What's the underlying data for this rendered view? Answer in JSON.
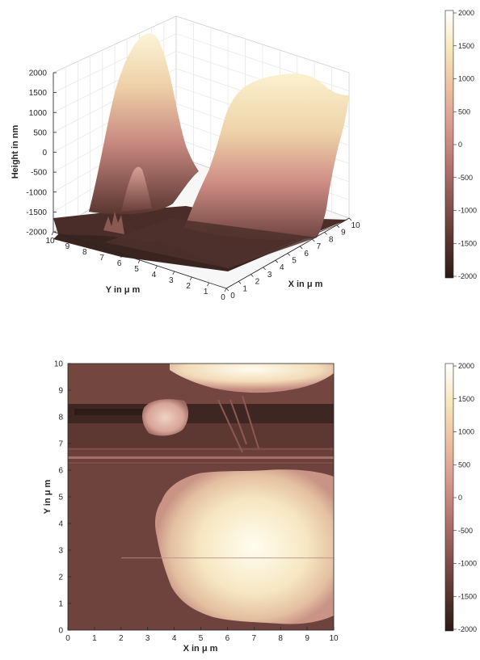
{
  "colormap": {
    "stops": [
      "#2b1a17",
      "#5a3630",
      "#8a5550",
      "#b87570",
      "#d99a90",
      "#eec0a0",
      "#f7e8bb",
      "#ffffff"
    ]
  },
  "chart_data": [
    {
      "type": "surface",
      "panel": "3d-surface",
      "xlabel": "X in μ m",
      "ylabel": "Y in μ m",
      "zlabel": "Height in nm",
      "xlim": [
        0,
        10
      ],
      "ylim": [
        0,
        10
      ],
      "zlim": [
        -2000,
        2000
      ],
      "x_ticks": [
        "0",
        "1",
        "2",
        "3",
        "4",
        "5",
        "6",
        "7",
        "8",
        "9",
        "10"
      ],
      "y_ticks": [
        "0",
        "1",
        "2",
        "3",
        "4",
        "5",
        "6",
        "7",
        "8",
        "9",
        "10"
      ],
      "z_ticks": [
        "-2000",
        "-1500",
        "-1000",
        "-500",
        "0",
        "500",
        "1000",
        "1500",
        "2000"
      ],
      "grid": true,
      "features": [
        {
          "name": "large plateau",
          "x_range": [
            3,
            10
          ],
          "y_range": [
            0.5,
            5.5
          ],
          "height_nm": 1700
        },
        {
          "name": "tall peak",
          "x_range": [
            4.5,
            8
          ],
          "y_range": [
            8.5,
            10
          ],
          "height_nm": 2200
        },
        {
          "name": "small bump",
          "x_range": [
            2.8,
            3.8
          ],
          "y_range": [
            7.6,
            8.7
          ],
          "height_nm": -500
        },
        {
          "name": "base",
          "height_nm": -1850
        }
      ],
      "colorbar": {
        "ticks": [
          "2000",
          "1500",
          "1000",
          "500",
          "0",
          "-500",
          "-1000",
          "-1500",
          "-2000"
        ],
        "range": [
          -2000,
          2000
        ]
      }
    },
    {
      "type": "heatmap",
      "panel": "top-view",
      "xlabel": "X in μ m",
      "ylabel": "Y in μ m",
      "xlim": [
        0,
        10
      ],
      "ylim": [
        0,
        10
      ],
      "x_ticks": [
        "0",
        "1",
        "2",
        "3",
        "4",
        "5",
        "6",
        "7",
        "8",
        "9",
        "10"
      ],
      "y_ticks": [
        "0",
        "1",
        "2",
        "3",
        "4",
        "5",
        "6",
        "7",
        "8",
        "9",
        "10"
      ],
      "base_value": -1700,
      "features": [
        {
          "name": "large plateau",
          "x_center": 6.3,
          "y_center": 2.8,
          "x_radius": 3.6,
          "y_radius": 2.7,
          "value": 1600
        },
        {
          "name": "top peak",
          "x_center": 6.8,
          "y_center": 10,
          "x_radius": 2.8,
          "y_radius": 0.9,
          "value": 1700
        },
        {
          "name": "small bump",
          "x_center": 3.3,
          "y_center": 8.2,
          "x_radius": 0.6,
          "y_radius": 0.55,
          "value": 0
        },
        {
          "name": "dark band",
          "y_range": [
            8.0,
            8.6
          ],
          "value": -1900
        },
        {
          "name": "bright line",
          "y": 5.8,
          "value": -1000
        }
      ],
      "colorbar": {
        "ticks": [
          "2000",
          "1500",
          "1000",
          "500",
          "0",
          "-500",
          "-1000",
          "-1500",
          "-2000"
        ],
        "range": [
          -2000,
          2000
        ]
      }
    }
  ]
}
